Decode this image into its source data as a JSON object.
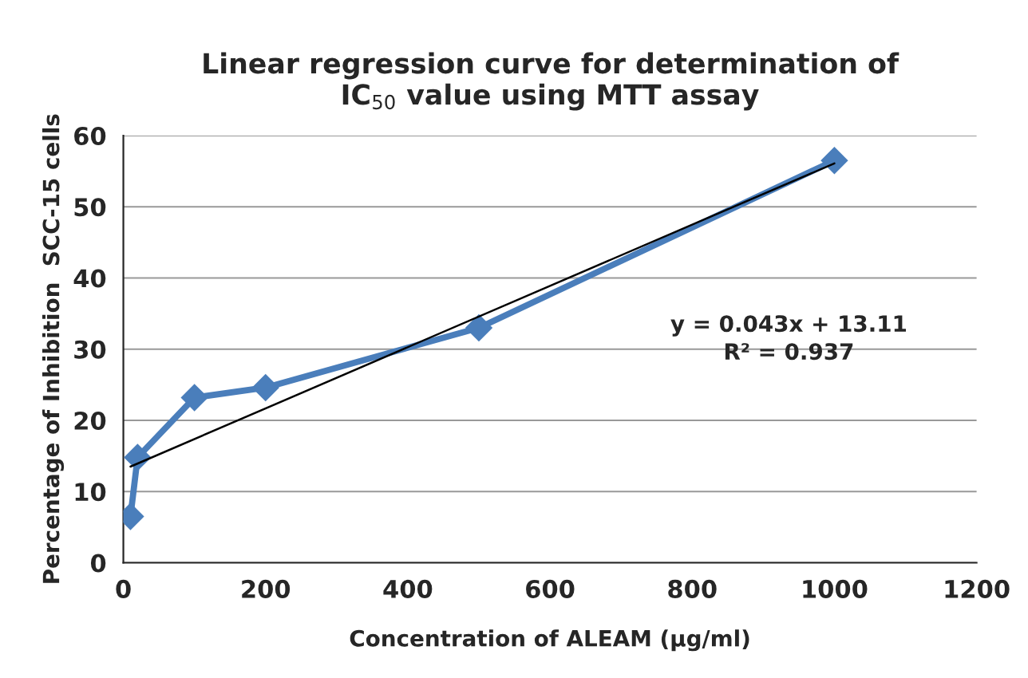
{
  "chart_data": {
    "type": "line",
    "title": "Linear regression curve for determination of\nIC$_{50}$ value using MTT assay",
    "xlabel": "Concentration of ALEAM (µg/ml)",
    "ylabel": "Percentage of Inhibition  SCC-15 cells",
    "x": [
      10,
      20,
      100,
      200,
      500,
      1000
    ],
    "series": [
      {
        "color": "#4a7ebb",
        "values": [
          6.5,
          14.8,
          23.2,
          24.6,
          33,
          56.5
        ],
        "marker": "diamond"
      },
      {
        "type": "line",
        "color": "#000000",
        "x": [
          10,
          1000
        ],
        "values": [
          13.5,
          56.1
        ],
        "marker": "none"
      }
    ],
    "annotations": [
      "y = 0.043x + 13.11",
      "R² = 0.937"
    ],
    "xlim": [
      0,
      1200
    ],
    "xticks": [
      0,
      200,
      400,
      600,
      800,
      1000,
      1200
    ],
    "ylim": [
      0,
      60
    ],
    "yticks": [
      0,
      10,
      20,
      30,
      40,
      50,
      60
    ],
    "grid": "y",
    "legend": false
  }
}
